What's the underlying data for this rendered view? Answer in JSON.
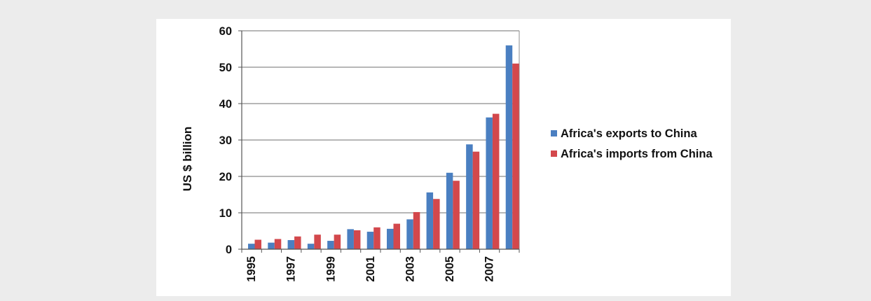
{
  "chart_data": {
    "type": "bar",
    "title": "",
    "xlabel": "",
    "ylabel": "US $ billion",
    "ylim": [
      0,
      60
    ],
    "yticks": [
      0,
      10,
      20,
      30,
      40,
      50,
      60
    ],
    "categories": [
      "1995",
      "1996",
      "1997",
      "1998",
      "1999",
      "2000",
      "2001",
      "2002",
      "2003",
      "2004",
      "2005",
      "2006",
      "2007",
      "2008"
    ],
    "tick_labels": [
      "1995",
      "1997",
      "1999",
      "2001",
      "2003",
      "2005",
      "2007"
    ],
    "grid": true,
    "legend_position": "right",
    "series": [
      {
        "name": "Africa's exports to China",
        "color": "#4a7fc1",
        "values": [
          1.5,
          1.8,
          2.5,
          1.5,
          2.3,
          5.5,
          4.8,
          5.6,
          8.2,
          15.6,
          21.0,
          28.8,
          36.2,
          56.0
        ]
      },
      {
        "name": "Africa's imports from China",
        "color": "#d3484c",
        "values": [
          2.6,
          2.8,
          3.5,
          4.0,
          4.0,
          5.2,
          6.0,
          7.0,
          10.2,
          13.8,
          18.8,
          26.8,
          37.2,
          51.0
        ]
      }
    ]
  }
}
